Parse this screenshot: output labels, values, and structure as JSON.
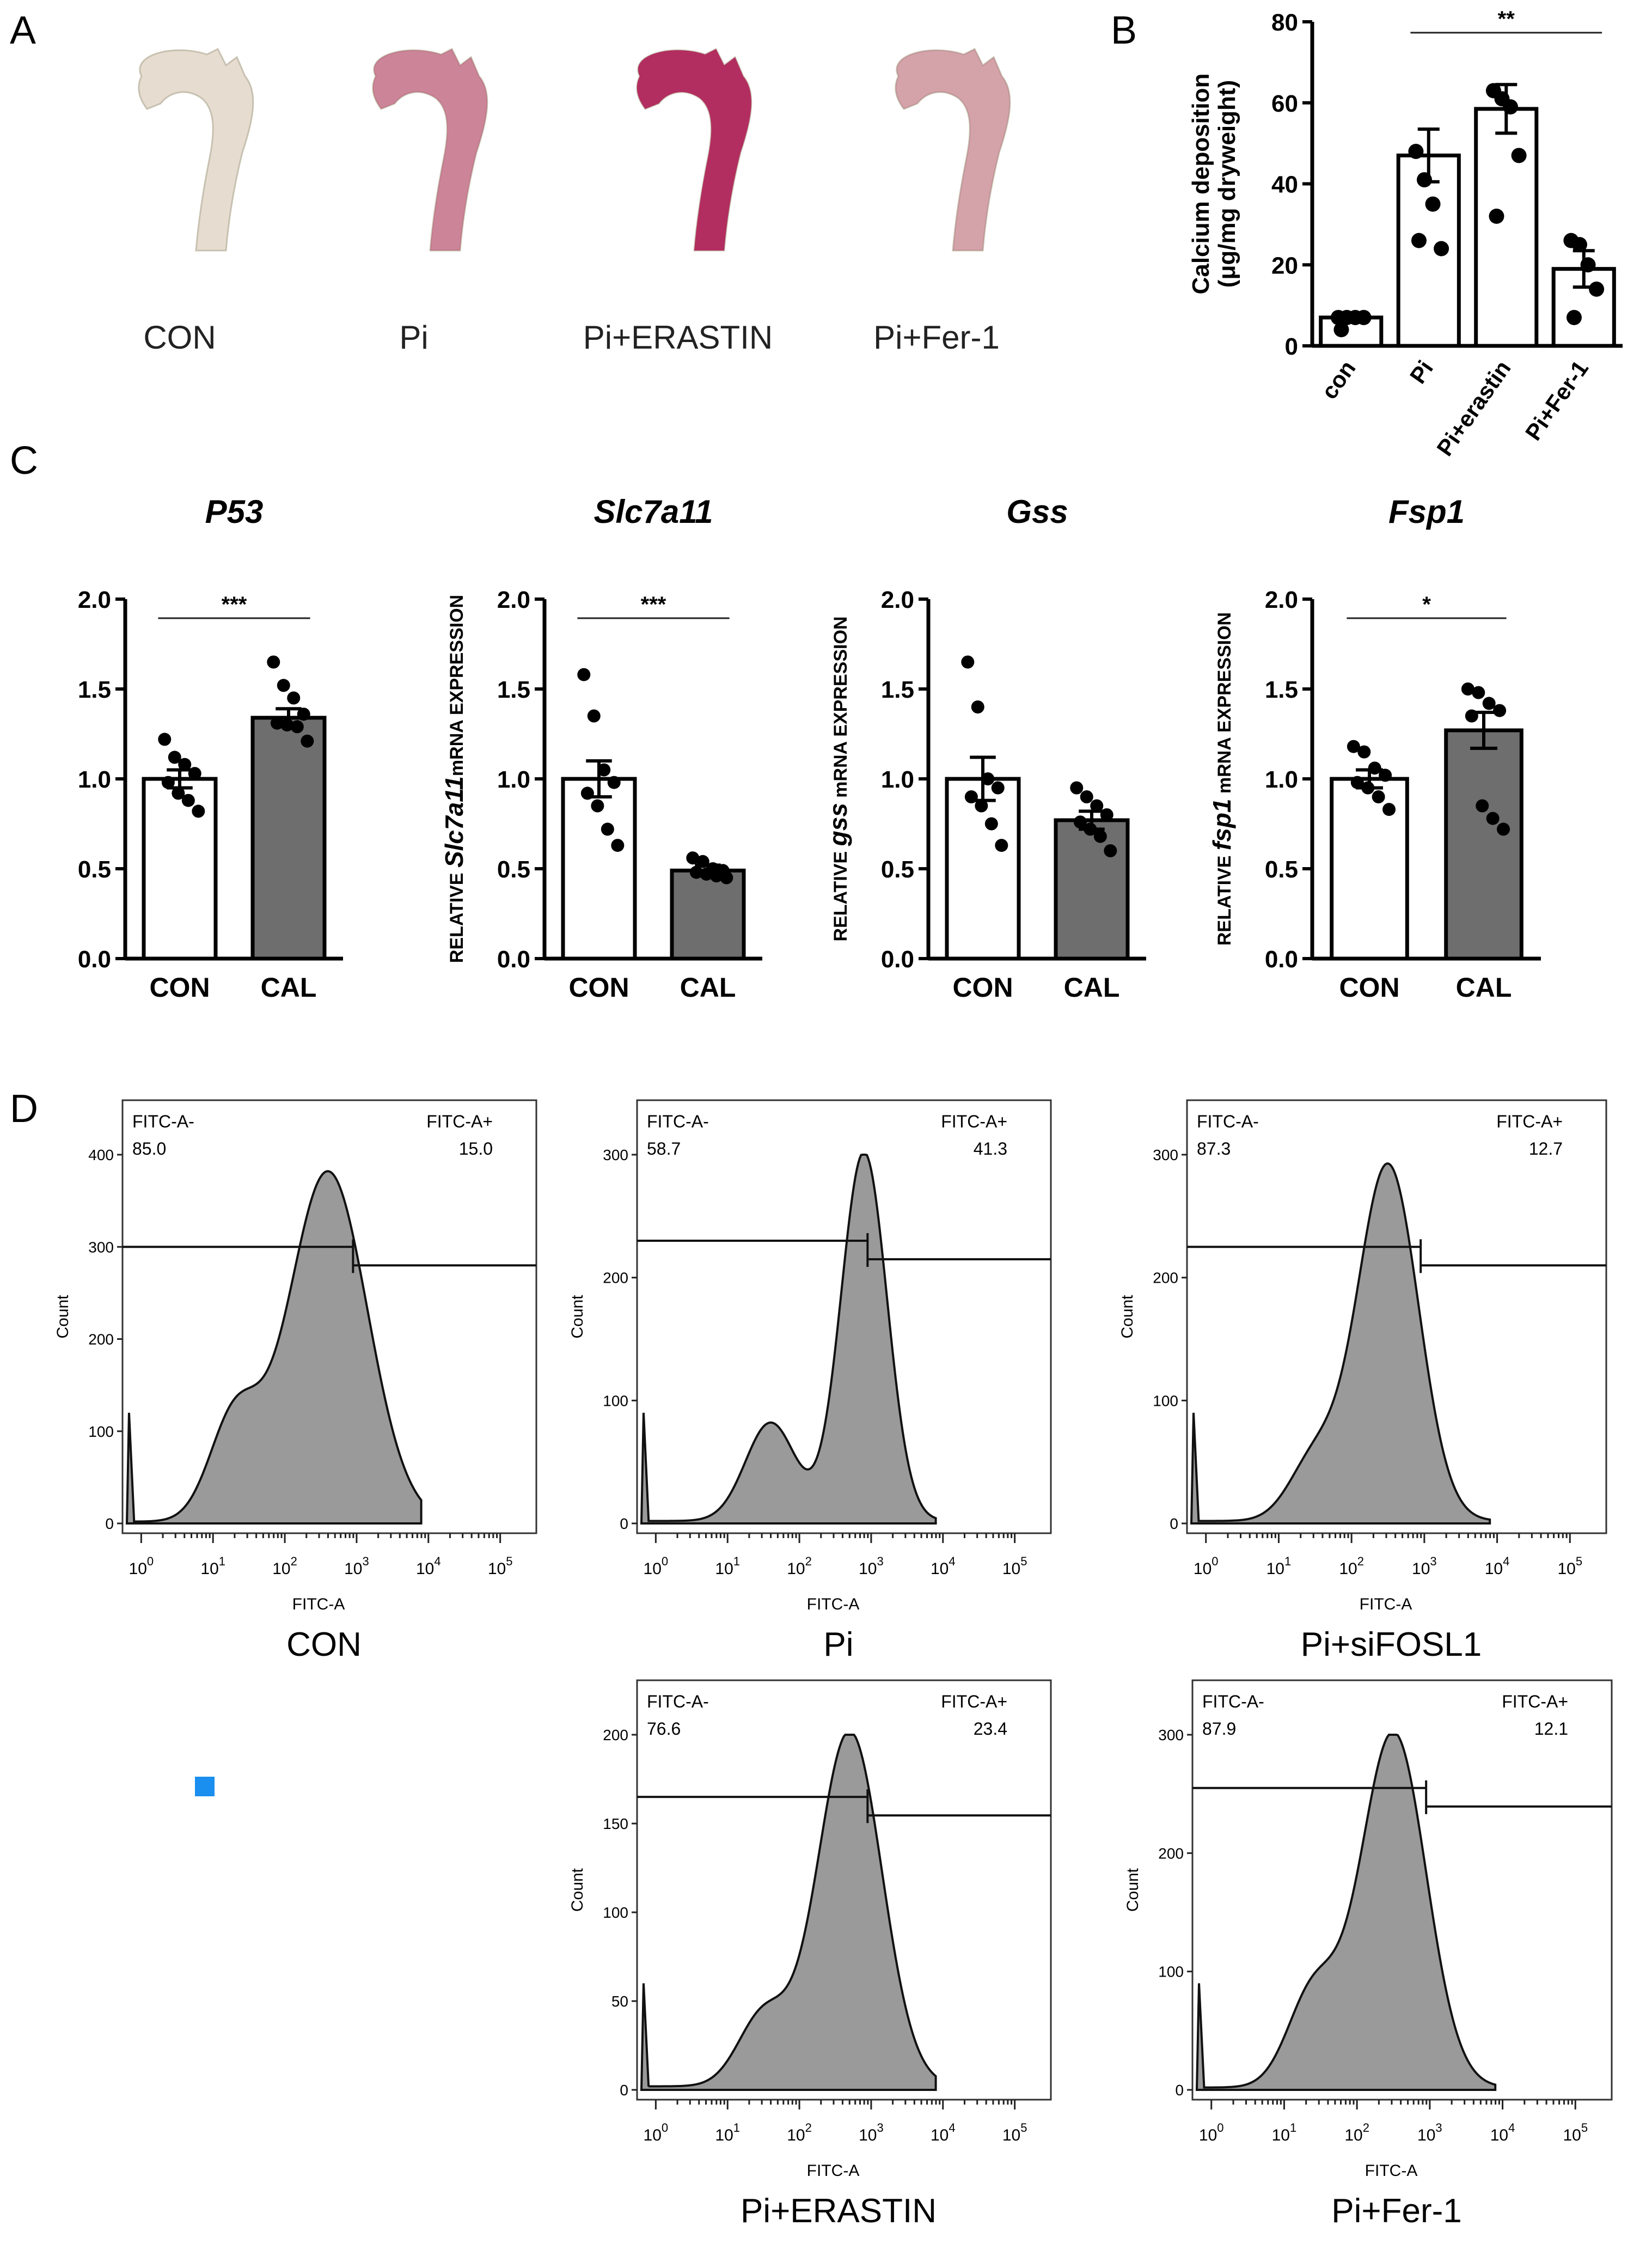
{
  "panel_letters": {
    "a": "A",
    "b": "B",
    "c": "C",
    "d": "D"
  },
  "panel_a": {
    "labels": [
      "CON",
      "Pi",
      "Pi+ERASTIN",
      "Pi+Fer-1"
    ],
    "stain_level": [
      0.05,
      0.5,
      0.95,
      0.35
    ],
    "colors": {
      "tissue": "#e9e6d6",
      "stain": "#b0245a"
    }
  },
  "chart_data": [
    {
      "id": "B",
      "type": "bar",
      "ylabel": "Calcium deposition (μg/mg dryweight)",
      "ylabel_lines": [
        "Calcium deposition",
        "(μg/mg dryweight)"
      ],
      "categories": [
        "con",
        "Pi",
        "Pi+erastin",
        "Pi+Fer-1"
      ],
      "values": [
        7,
        47,
        58.5,
        19
      ],
      "errors": [
        1,
        6.5,
        6,
        4.5
      ],
      "points": [
        [
          7,
          7,
          7,
          7,
          4
        ],
        [
          48,
          41,
          35,
          24,
          26
        ],
        [
          63,
          61,
          59,
          47,
          32
        ],
        [
          26,
          25,
          20,
          14,
          7
        ]
      ],
      "bar_style": [
        "open",
        "open",
        "open",
        "open"
      ],
      "ylim": [
        0,
        80
      ],
      "yticks": [
        "0",
        "20",
        "40",
        "60",
        "80"
      ],
      "significance": [
        {
          "from": 1,
          "to": 3,
          "label": "**"
        }
      ]
    },
    {
      "id": "C1",
      "type": "bar",
      "title": "P53",
      "ylabel": "",
      "categories": [
        "CON",
        "CAL"
      ],
      "values": [
        1.0,
        1.34
      ],
      "errors": [
        0.05,
        0.05
      ],
      "points": [
        [
          1.22,
          1.12,
          1.08,
          1.03,
          0.98,
          0.92,
          0.88,
          0.82
        ],
        [
          1.65,
          1.52,
          1.45,
          1.36,
          1.31,
          1.3,
          1.29,
          1.21
        ]
      ],
      "bar_style": [
        "open",
        "filled"
      ],
      "ylim": [
        0,
        2.0
      ],
      "yticks": [
        "0.0",
        "0.5",
        "1.0",
        "1.5",
        "2.0"
      ],
      "significance": [
        {
          "from": 0,
          "to": 1,
          "label": "***"
        }
      ]
    },
    {
      "id": "C2",
      "type": "bar",
      "title": "Slc7a11",
      "ylabel": "RELATIVE Slc7a11mRNA EXPRESSION",
      "ylabel_parts": [
        "RELATIVE ",
        "Slc7a11",
        "mRNA EXPRESSION"
      ],
      "categories": [
        "CON",
        "CAL"
      ],
      "values": [
        1.0,
        0.49
      ],
      "errors": [
        0.1,
        0.03
      ],
      "points": [
        [
          1.58,
          1.35,
          1.05,
          0.98,
          0.92,
          0.85,
          0.72,
          0.63
        ],
        [
          0.56,
          0.54,
          0.5,
          0.49,
          0.48,
          0.47,
          0.46,
          0.45
        ]
      ],
      "bar_style": [
        "open",
        "filled"
      ],
      "ylim": [
        0,
        2.0
      ],
      "yticks": [
        "0.0",
        "0.5",
        "1.0",
        "1.5",
        "2.0"
      ],
      "significance": [
        {
          "from": 0,
          "to": 1,
          "label": "***"
        }
      ]
    },
    {
      "id": "C3",
      "type": "bar",
      "title": "Gss",
      "ylabel": "RELATIVE gss mRNA EXPRESSION",
      "ylabel_parts": [
        "RELATIVE ",
        "gss",
        " mRNA EXPRESSION"
      ],
      "categories": [
        "CON",
        "CAL"
      ],
      "values": [
        1.0,
        0.77
      ],
      "errors": [
        0.12,
        0.05
      ],
      "points": [
        [
          1.65,
          1.4,
          1.0,
          0.95,
          0.9,
          0.85,
          0.75,
          0.63
        ],
        [
          0.95,
          0.9,
          0.85,
          0.8,
          0.76,
          0.72,
          0.68,
          0.6
        ]
      ],
      "bar_style": [
        "open",
        "filled"
      ],
      "ylim": [
        0,
        2.0
      ],
      "yticks": [
        "0.0",
        "0.5",
        "1.0",
        "1.5",
        "2.0"
      ],
      "significance": []
    },
    {
      "id": "C4",
      "type": "bar",
      "title": "Fsp1",
      "ylabel": "RELATIVE fsp1 mRNA EXPRESSION",
      "ylabel_parts": [
        "RELATIVE ",
        "fsp1",
        " mRNA EXPRESSION"
      ],
      "categories": [
        "CON",
        "CAL"
      ],
      "values": [
        1.0,
        1.27
      ],
      "errors": [
        0.05,
        0.1
      ],
      "points": [
        [
          1.18,
          1.15,
          1.06,
          1.02,
          0.98,
          0.95,
          0.9,
          0.83
        ],
        [
          1.5,
          1.48,
          1.42,
          1.38,
          1.35,
          0.85,
          0.78,
          0.72
        ]
      ],
      "bar_style": [
        "open",
        "filled"
      ],
      "ylim": [
        0,
        2.0
      ],
      "yticks": [
        "0.0",
        "0.5",
        "1.0",
        "1.5",
        "2.0"
      ],
      "significance": [
        {
          "from": 0,
          "to": 1,
          "label": "*"
        }
      ]
    }
  ],
  "flow_panels": [
    {
      "label": "CON",
      "neg_label": "FITC-A-",
      "neg": "85.0",
      "pos_label": "FITC-A+",
      "pos": "15.0",
      "ymax": 400,
      "yticks": [
        "0",
        "100",
        "200",
        "300",
        "400"
      ],
      "gate_count": 300,
      "gate_log": 2.95,
      "peak_log": 2.6,
      "peak_count": 380,
      "shoulder_log": 1.3,
      "shoulder_count": 110,
      "width": 0.55
    },
    {
      "label": "Pi",
      "neg_label": "FITC-A-",
      "neg": "58.7",
      "pos_label": "FITC-A+",
      "pos": "41.3",
      "ymax": 300,
      "yticks": [
        "0",
        "100",
        "200",
        "300"
      ],
      "gate_count": 230,
      "gate_log": 2.95,
      "peak_log": 2.9,
      "peak_count": 300,
      "shoulder_log": 1.6,
      "shoulder_count": 80,
      "width": 0.32
    },
    {
      "label": "Pi+siFOSL1",
      "neg_label": "FITC-A-",
      "neg": "87.3",
      "pos_label": "FITC-A+",
      "pos": "12.7",
      "ymax": 300,
      "yticks": [
        "0",
        "100",
        "200",
        "300"
      ],
      "gate_count": 225,
      "gate_log": 2.95,
      "peak_log": 2.5,
      "peak_count": 290,
      "shoulder_log": 1.5,
      "shoulder_count": 50,
      "width": 0.42
    },
    {
      "label": "Pi+ERASTIN",
      "neg_label": "FITC-A-",
      "neg": "76.6",
      "pos_label": "FITC-A+",
      "pos": "23.4",
      "ymax": 200,
      "yticks": [
        "0",
        "50",
        "100",
        "150",
        "200"
      ],
      "gate_count": 165,
      "gate_log": 2.95,
      "peak_log": 2.7,
      "peak_count": 200,
      "shoulder_log": 1.5,
      "shoulder_count": 40,
      "width": 0.45
    },
    {
      "label": "Pi+Fer-1",
      "neg_label": "FITC-A-",
      "neg": "87.9",
      "pos_label": "FITC-A+",
      "pos": "12.1",
      "ymax": 300,
      "yticks": [
        "0",
        "100",
        "200",
        "300"
      ],
      "gate_count": 255,
      "gate_log": 2.95,
      "peak_log": 2.5,
      "peak_count": 300,
      "shoulder_log": 1.4,
      "shoulder_count": 80,
      "width": 0.45
    }
  ],
  "flow_axes": {
    "xlabel": "FITC-A",
    "ylabel": "Count",
    "xticks": [
      "0",
      "1",
      "2",
      "3",
      "4",
      "5"
    ]
  },
  "marker": {
    "color": "#1a8ff0"
  }
}
